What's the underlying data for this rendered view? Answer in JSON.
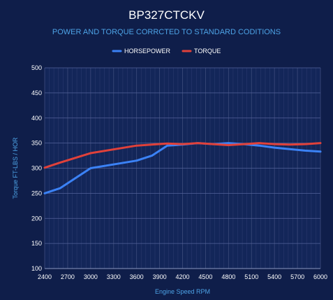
{
  "chart_data": {
    "type": "line",
    "title": "BP327CTCKV",
    "subtitle": "POWER AND TORQUE CORRCTED TO STANDARD CODITIONS",
    "xlabel": "Engine Speed RPM",
    "ylabel": "Torque FT-LBS / HOR",
    "x": [
      2400,
      2600,
      3000,
      3400,
      3600,
      3800,
      4000,
      4200,
      4400,
      4600,
      4800,
      5000,
      5200,
      5400,
      5600,
      5800,
      6000
    ],
    "x_ticks": [
      2400,
      2700,
      3000,
      3300,
      3600,
      3900,
      4200,
      4500,
      4800,
      5100,
      5400,
      5700,
      6000
    ],
    "xlim": [
      2400,
      6000
    ],
    "ylim": [
      100,
      500
    ],
    "y_ticks": [
      100,
      150,
      200,
      250,
      300,
      350,
      400,
      450,
      500
    ],
    "grid": true,
    "legend": "top-center",
    "series": [
      {
        "name": "HORSEPOWER",
        "color": "#3b82f6",
        "values": [
          250,
          260,
          300,
          310,
          315,
          325,
          345,
          347,
          350,
          348,
          350,
          348,
          345,
          341,
          338,
          335,
          333
        ]
      },
      {
        "name": "TORQUE",
        "color": "#e0413a",
        "values": [
          301,
          311,
          330,
          340,
          345,
          347,
          349,
          348,
          350,
          348,
          346,
          348,
          350,
          348,
          347,
          348,
          350
        ]
      }
    ]
  }
}
